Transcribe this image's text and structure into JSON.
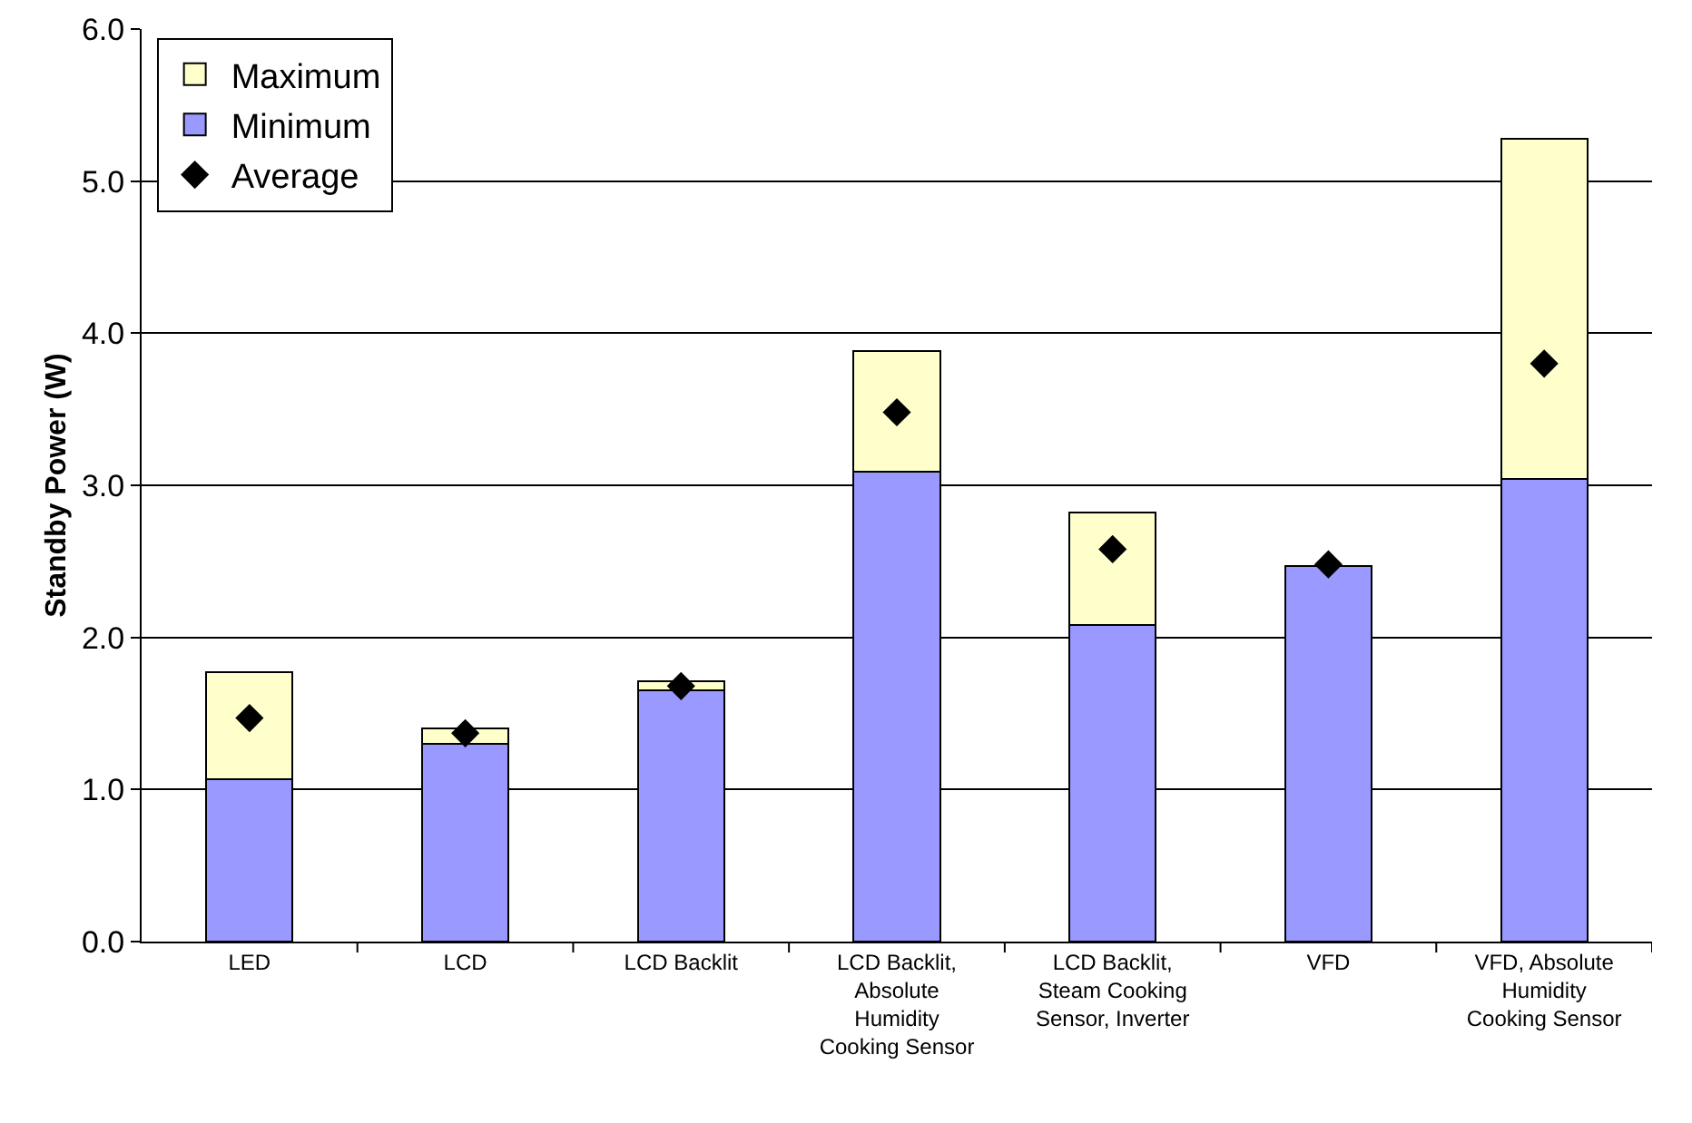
{
  "chart_data": {
    "type": "bar",
    "ylabel": "Standby Power (W)",
    "stacked": true,
    "categories": [
      "LED",
      "LCD",
      "LCD Backlit",
      "LCD Backlit,\nAbsolute\nHumidity\nCooking Sensor",
      "LCD Backlit,\nSteam Cooking\nSensor, Inverter",
      "VFD",
      "VFD, Absolute\nHumidity\nCooking Sensor"
    ],
    "series": [
      {
        "name": "Minimum",
        "color": "#9999ff",
        "values": [
          1.07,
          1.3,
          1.65,
          3.09,
          2.08,
          2.47,
          3.04
        ]
      },
      {
        "name": "Maximum",
        "color": "#ffffcc",
        "values": [
          0.7,
          0.1,
          0.06,
          0.79,
          0.74,
          null,
          2.24
        ]
      },
      {
        "name": "Average",
        "type": "scatter",
        "color": "#000000",
        "marker": "diamond",
        "x": [
          "LED",
          "LCD",
          "LCD Backlit",
          "LCD Backlit,\nAbsolute\nHumidity\nCooking Sensor",
          "LCD Backlit,\nSteam Cooking\nSensor, Inverter",
          "VFD",
          "VFD, Absolute\nHumidity\nCooking Sensor"
        ],
        "values": [
          1.47,
          1.37,
          1.68,
          3.48,
          2.58,
          2.48,
          3.8
        ]
      }
    ],
    "ylim": [
      0,
      6
    ],
    "yticks": [
      {
        "value": 0,
        "label": "0.0"
      },
      {
        "value": 1,
        "label": "1.0"
      },
      {
        "value": 2,
        "label": "2.0"
      },
      {
        "value": 3,
        "label": "3.0"
      },
      {
        "value": 4,
        "label": "4.0"
      },
      {
        "value": 5,
        "label": "5.0"
      },
      {
        "value": 6,
        "label": "6.0"
      }
    ],
    "grid": "y",
    "legend": "top left"
  }
}
